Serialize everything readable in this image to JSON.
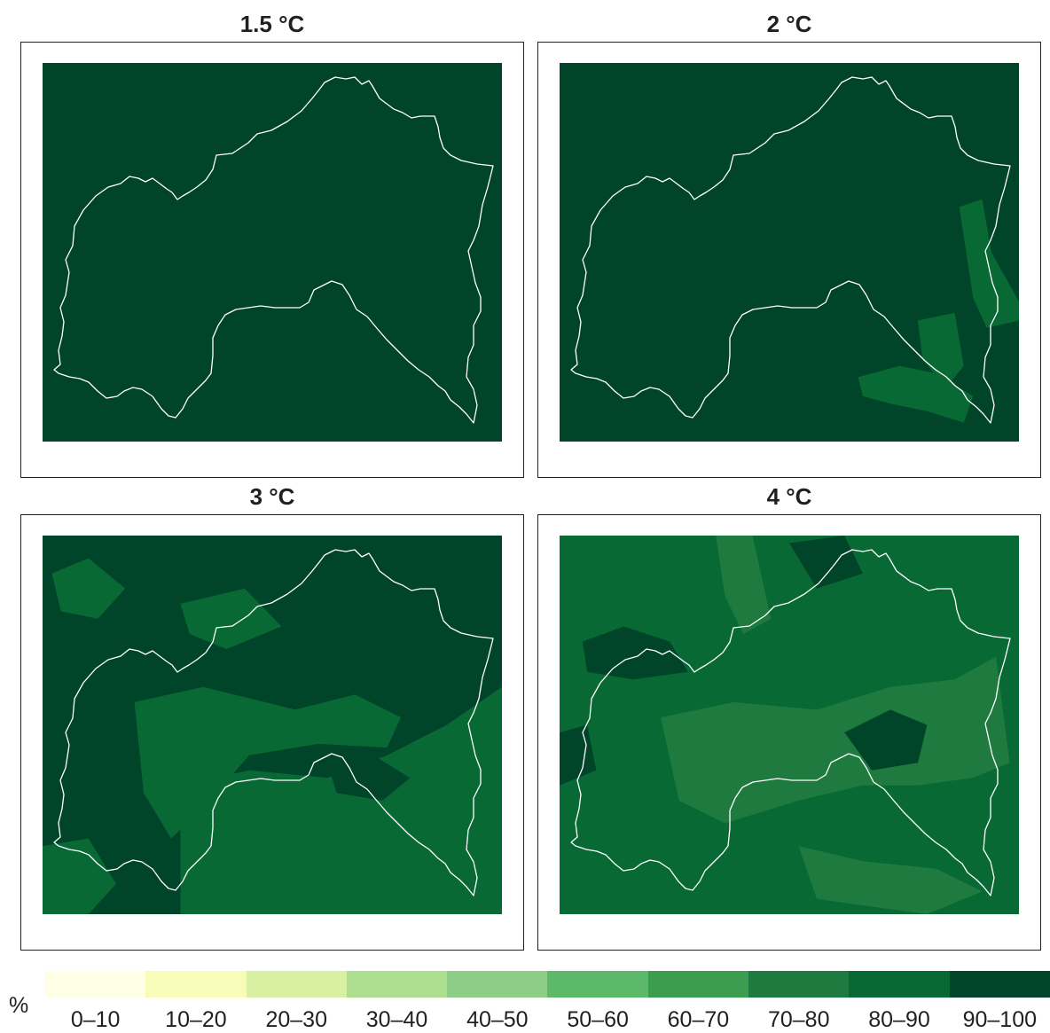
{
  "panels": [
    {
      "title": "1.5 °C",
      "base": 9,
      "patches": []
    },
    {
      "title": "2 °C",
      "base": 9,
      "patches": [
        {
          "class": 8,
          "shape": [
            [
              0.87,
              0.38
            ],
            [
              0.92,
              0.36
            ],
            [
              0.94,
              0.5
            ],
            [
              1.0,
              0.63
            ],
            [
              1.0,
              0.68
            ],
            [
              0.93,
              0.7
            ],
            [
              0.9,
              0.62
            ]
          ]
        },
        {
          "class": 8,
          "shape": [
            [
              0.78,
              0.68
            ],
            [
              0.86,
              0.66
            ],
            [
              0.88,
              0.8
            ],
            [
              0.84,
              0.86
            ],
            [
              0.79,
              0.78
            ]
          ]
        },
        {
          "class": 8,
          "shape": [
            [
              0.65,
              0.83
            ],
            [
              0.74,
              0.8
            ],
            [
              0.82,
              0.82
            ],
            [
              0.9,
              0.88
            ],
            [
              0.88,
              0.95
            ],
            [
              0.8,
              0.92
            ],
            [
              0.72,
              0.9
            ],
            [
              0.66,
              0.88
            ]
          ]
        }
      ]
    },
    {
      "title": "3 °C",
      "base": 9,
      "patches": [
        {
          "class": 8,
          "shape": [
            [
              0.2,
              0.44
            ],
            [
              0.35,
              0.4
            ],
            [
              0.55,
              0.46
            ],
            [
              0.68,
              0.42
            ],
            [
              0.78,
              0.48
            ],
            [
              0.75,
              0.56
            ],
            [
              0.6,
              0.55
            ],
            [
              0.45,
              0.58
            ],
            [
              0.35,
              0.72
            ],
            [
              0.28,
              0.8
            ],
            [
              0.22,
              0.68
            ]
          ]
        },
        {
          "class": 8,
          "shape": [
            [
              0.3,
              0.66
            ],
            [
              0.45,
              0.62
            ],
            [
              0.62,
              0.64
            ],
            [
              0.75,
              0.58
            ],
            [
              0.88,
              0.5
            ],
            [
              1.0,
              0.4
            ],
            [
              1.0,
              1.0
            ],
            [
              0.3,
              1.0
            ]
          ]
        },
        {
          "class": 8,
          "shape": [
            [
              0.02,
              0.1
            ],
            [
              0.1,
              0.06
            ],
            [
              0.18,
              0.14
            ],
            [
              0.12,
              0.22
            ],
            [
              0.04,
              0.2
            ]
          ]
        },
        {
          "class": 8,
          "shape": [
            [
              0.3,
              0.18
            ],
            [
              0.44,
              0.14
            ],
            [
              0.52,
              0.24
            ],
            [
              0.4,
              0.3
            ],
            [
              0.32,
              0.26
            ]
          ]
        },
        {
          "class": 8,
          "shape": [
            [
              0.0,
              0.82
            ],
            [
              0.1,
              0.8
            ],
            [
              0.16,
              0.92
            ],
            [
              0.1,
              1.0
            ],
            [
              0.0,
              1.0
            ]
          ]
        },
        {
          "class": 9,
          "shape": [
            [
              0.62,
              0.6
            ],
            [
              0.72,
              0.58
            ],
            [
              0.8,
              0.64
            ],
            [
              0.74,
              0.7
            ],
            [
              0.64,
              0.68
            ]
          ]
        }
      ]
    },
    {
      "title": "4 °C",
      "base": 8,
      "patches": [
        {
          "class": 7,
          "shape": [
            [
              0.22,
              0.48
            ],
            [
              0.38,
              0.44
            ],
            [
              0.56,
              0.46
            ],
            [
              0.72,
              0.4
            ],
            [
              0.86,
              0.38
            ],
            [
              0.95,
              0.32
            ],
            [
              0.98,
              0.6
            ],
            [
              0.9,
              0.64
            ],
            [
              0.78,
              0.66
            ],
            [
              0.66,
              0.66
            ],
            [
              0.52,
              0.7
            ],
            [
              0.36,
              0.76
            ],
            [
              0.26,
              0.7
            ]
          ]
        },
        {
          "class": 7,
          "shape": [
            [
              0.52,
              0.82
            ],
            [
              0.66,
              0.86
            ],
            [
              0.82,
              0.88
            ],
            [
              0.92,
              0.94
            ],
            [
              0.8,
              1.0
            ],
            [
              0.56,
              0.96
            ]
          ]
        },
        {
          "class": 7,
          "shape": [
            [
              0.34,
              0.0
            ],
            [
              0.42,
              0.0
            ],
            [
              0.46,
              0.22
            ],
            [
              0.4,
              0.26
            ],
            [
              0.36,
              0.16
            ]
          ]
        },
        {
          "class": 9,
          "shape": [
            [
              0.05,
              0.28
            ],
            [
              0.14,
              0.24
            ],
            [
              0.24,
              0.28
            ],
            [
              0.28,
              0.36
            ],
            [
              0.16,
              0.38
            ],
            [
              0.06,
              0.36
            ]
          ]
        },
        {
          "class": 9,
          "shape": [
            [
              0.62,
              0.52
            ],
            [
              0.72,
              0.46
            ],
            [
              0.8,
              0.5
            ],
            [
              0.78,
              0.6
            ],
            [
              0.68,
              0.62
            ]
          ]
        },
        {
          "class": 9,
          "shape": [
            [
              0.5,
              0.02
            ],
            [
              0.62,
              0.0
            ],
            [
              0.66,
              0.1
            ],
            [
              0.56,
              0.14
            ]
          ]
        },
        {
          "class": 9,
          "shape": [
            [
              0.0,
              0.52
            ],
            [
              0.06,
              0.5
            ],
            [
              0.08,
              0.62
            ],
            [
              0.0,
              0.66
            ]
          ]
        }
      ]
    }
  ],
  "legend": {
    "unit": "%",
    "classes": [
      {
        "label": "0–10",
        "color": "#ffffe5"
      },
      {
        "label": "10–20",
        "color": "#f7fcb9"
      },
      {
        "label": "20–30",
        "color": "#d9f0a3"
      },
      {
        "label": "30–40",
        "color": "#addd8e"
      },
      {
        "label": "40–50",
        "color": "#8dcd86"
      },
      {
        "label": "50–60",
        "color": "#5db96a"
      },
      {
        "label": "60–70",
        "color": "#3a9d50"
      },
      {
        "label": "70–80",
        "color": "#1e7a3e"
      },
      {
        "label": "80–90",
        "color": "#086935"
      },
      {
        "label": "90–100",
        "color": "#004529"
      }
    ]
  },
  "colors": {
    "boundary": "#ffffff",
    "frame": "#231f20"
  }
}
